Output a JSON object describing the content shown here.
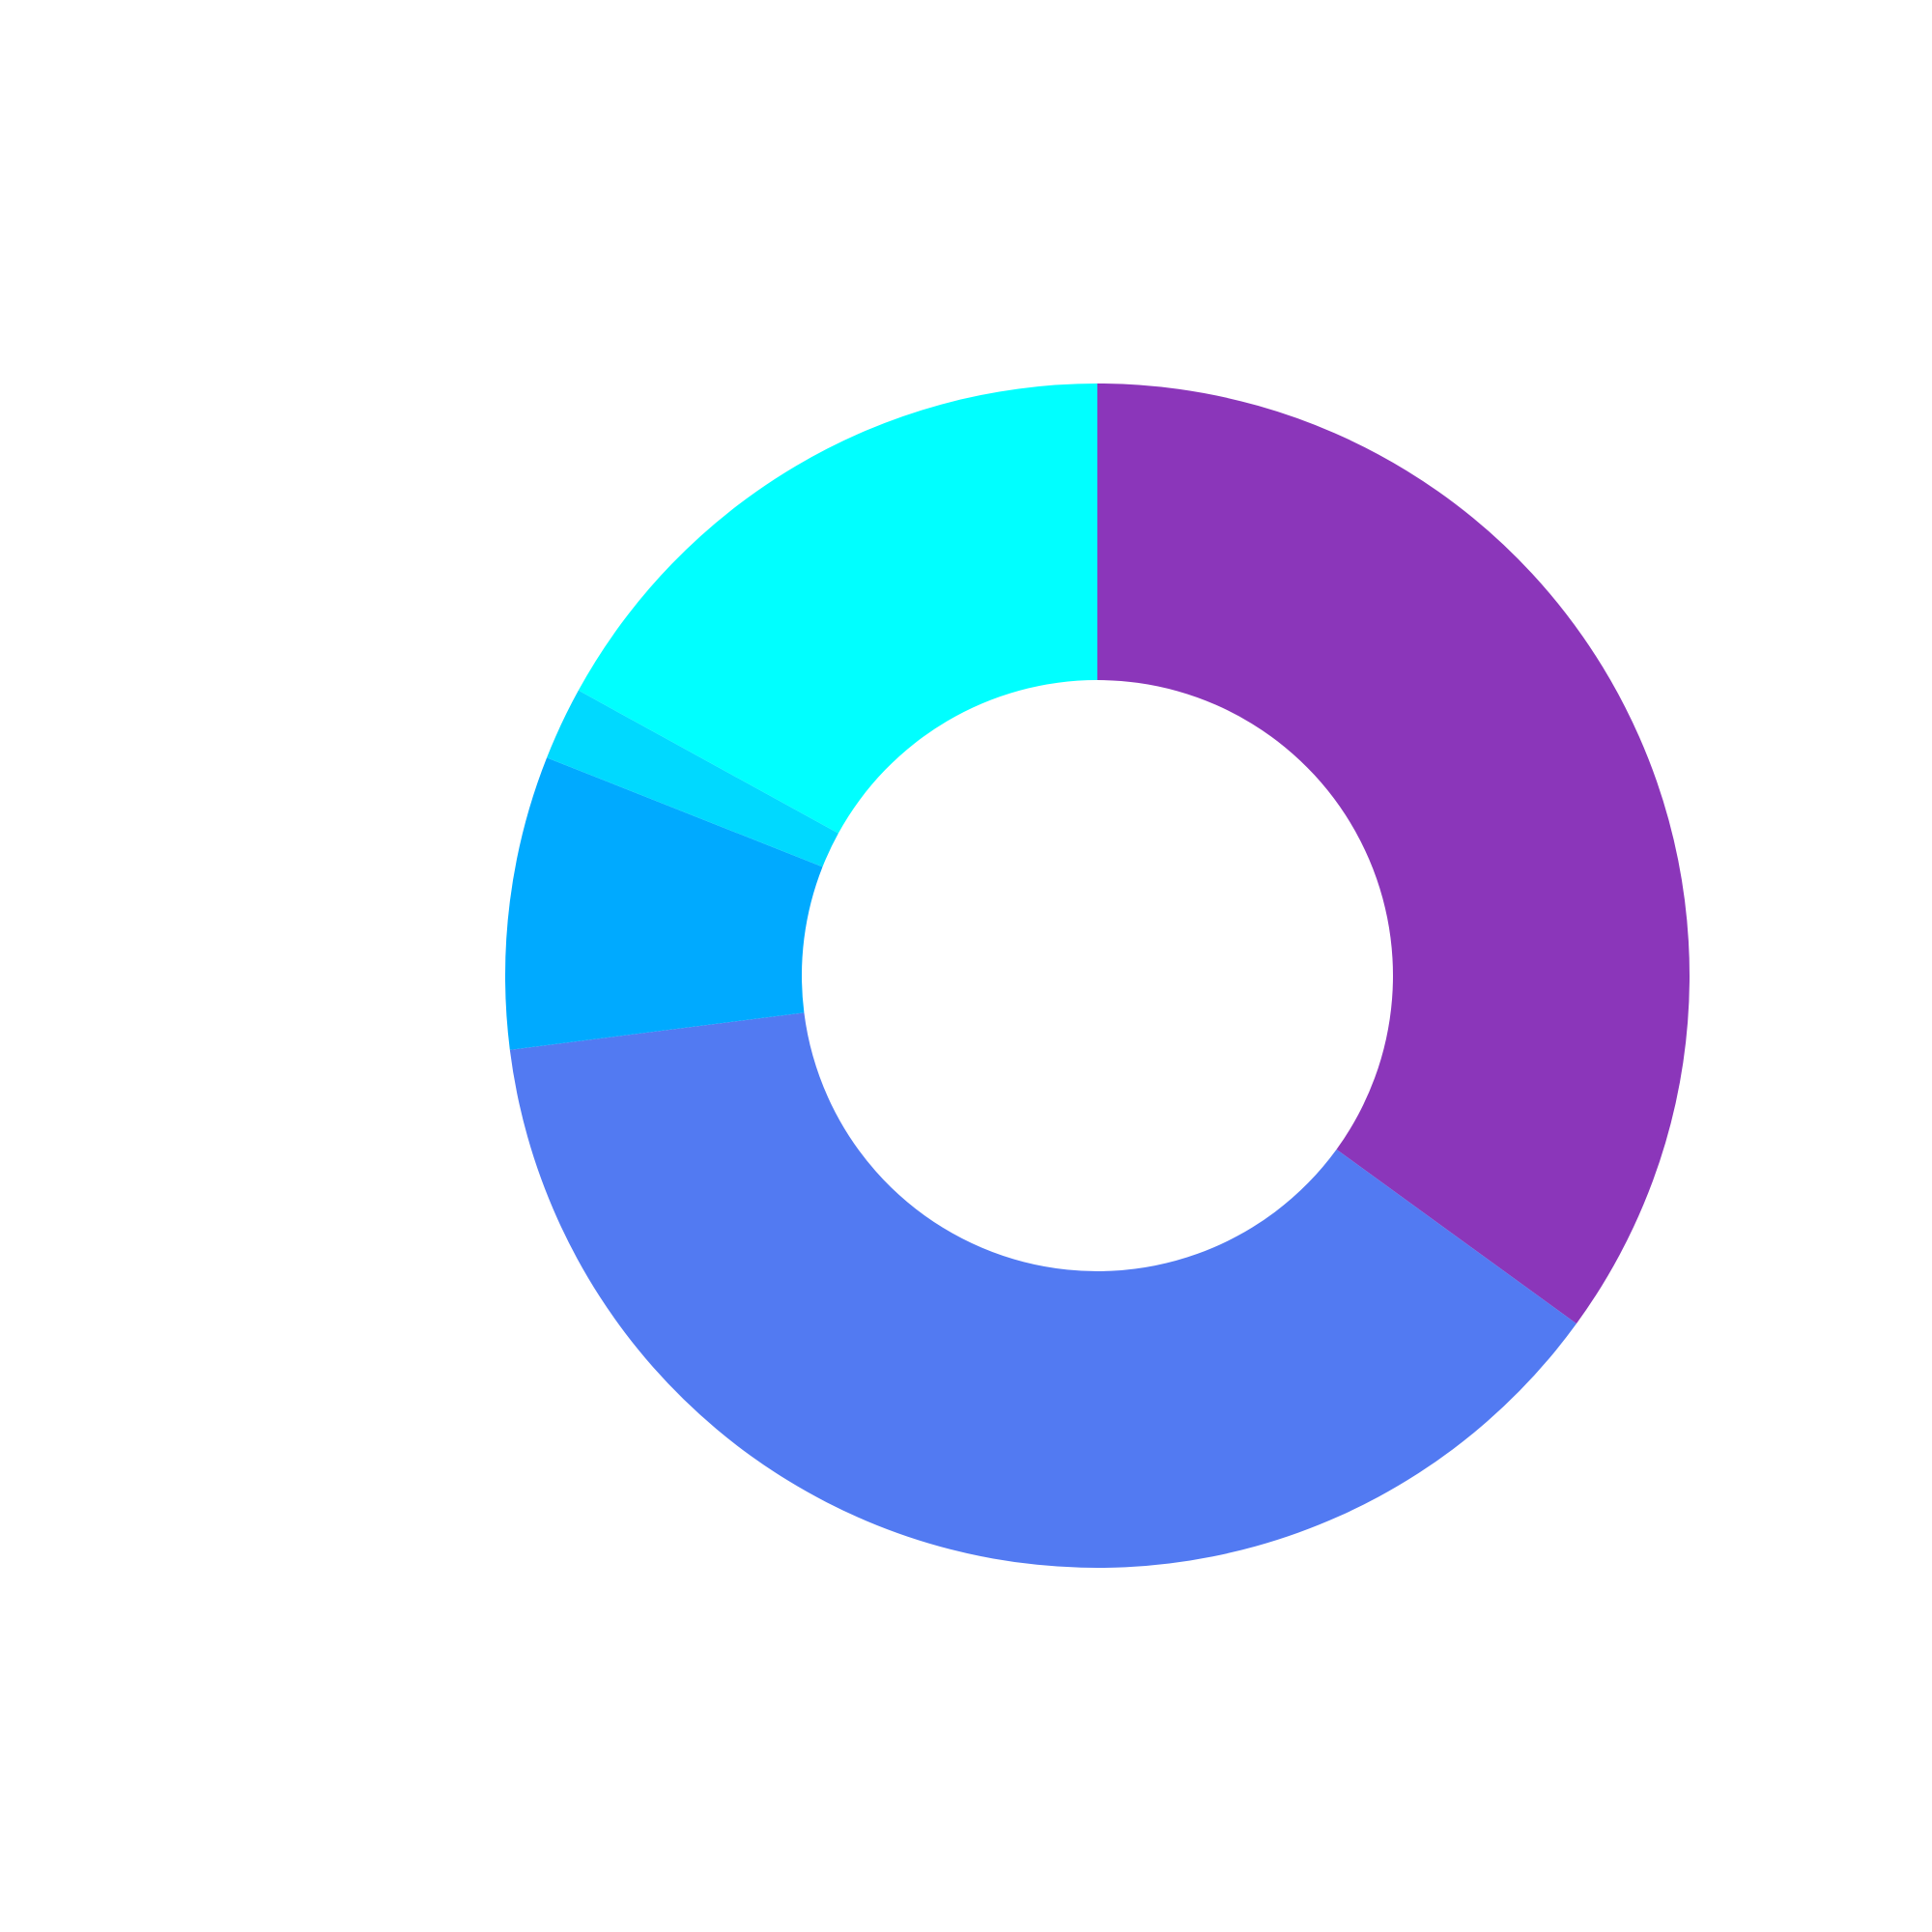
{
  "chart_data": {
    "type": "pie",
    "style": "donut",
    "values": [
      35,
      38,
      8,
      2,
      17
    ],
    "colors": [
      "#8b36ba",
      "#527af2",
      "#00aaff",
      "#00d9ff",
      "#00ffff"
    ],
    "start": "top",
    "direction": "clockwise",
    "legend": "none"
  }
}
